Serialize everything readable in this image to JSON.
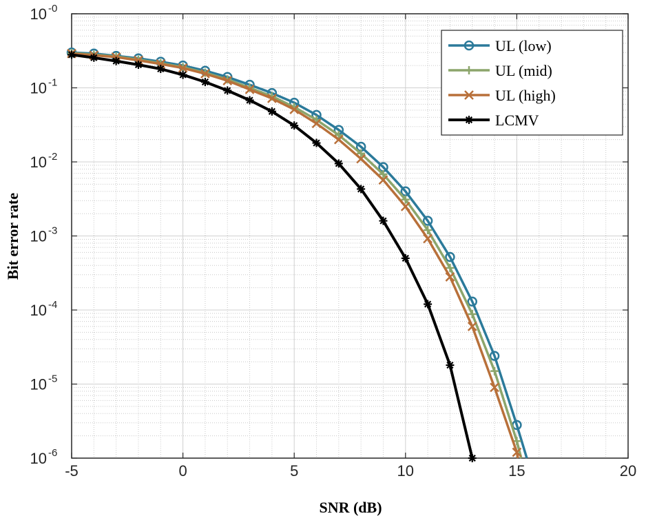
{
  "chart_data": {
    "type": "line",
    "title": "",
    "xlabel": "SNR (dB)",
    "ylabel": "Bit error rate",
    "xlim": [
      -5,
      20
    ],
    "ylim": [
      1e-06,
      1
    ],
    "yscale": "log",
    "grid": true,
    "minor_grid": true,
    "legend_position": "top-right",
    "x_ticks": [
      "-5",
      "0",
      "5",
      "10",
      "15",
      "20"
    ],
    "x_tick_values": [
      -5,
      0,
      5,
      10,
      15,
      20
    ],
    "y_ticks": [
      {
        "value": 1,
        "base": "10",
        "exp": "-0"
      },
      {
        "value": 0.1,
        "base": "10",
        "exp": "-1"
      },
      {
        "value": 0.01,
        "base": "10",
        "exp": "-2"
      },
      {
        "value": 0.001,
        "base": "10",
        "exp": "-3"
      },
      {
        "value": 0.0001,
        "base": "10",
        "exp": "-4"
      },
      {
        "value": 1e-05,
        "base": "10",
        "exp": "-5"
      },
      {
        "value": 1e-06,
        "base": "10",
        "exp": "-6"
      }
    ],
    "series": [
      {
        "name": "UL (low)",
        "color": "#2b7a9a",
        "marker": "circle",
        "points": [
          [
            -5,
            0.3
          ],
          [
            -4,
            0.29
          ],
          [
            -3,
            0.27
          ],
          [
            -2,
            0.25
          ],
          [
            -1,
            0.225
          ],
          [
            0,
            0.2
          ],
          [
            1,
            0.17
          ],
          [
            2,
            0.14
          ],
          [
            3,
            0.11
          ],
          [
            4,
            0.085
          ],
          [
            5,
            0.063
          ],
          [
            6,
            0.043
          ],
          [
            7,
            0.027
          ],
          [
            8,
            0.016
          ],
          [
            9,
            0.0085
          ],
          [
            10,
            0.004
          ],
          [
            11,
            0.0016
          ],
          [
            12,
            0.00052
          ],
          [
            13,
            0.00013
          ],
          [
            14,
            2.4e-05
          ],
          [
            15,
            2.8e-06
          ],
          [
            15.45,
            1e-06
          ]
        ]
      },
      {
        "name": "UL (mid)",
        "color": "#8ca56b",
        "marker": "plus",
        "points": [
          [
            -5,
            0.295
          ],
          [
            -4,
            0.28
          ],
          [
            -3,
            0.265
          ],
          [
            -2,
            0.24
          ],
          [
            -1,
            0.215
          ],
          [
            0,
            0.19
          ],
          [
            1,
            0.16
          ],
          [
            2,
            0.13
          ],
          [
            3,
            0.1
          ],
          [
            4,
            0.077
          ],
          [
            5,
            0.055
          ],
          [
            6,
            0.037
          ],
          [
            7,
            0.023
          ],
          [
            8,
            0.013
          ],
          [
            9,
            0.0068
          ],
          [
            10,
            0.0031
          ],
          [
            11,
            0.0012
          ],
          [
            12,
            0.00037
          ],
          [
            13,
            8.8e-05
          ],
          [
            14,
            1.5e-05
          ],
          [
            15,
            1.7e-06
          ],
          [
            15.2,
            1e-06
          ]
        ]
      },
      {
        "name": "UL (high)",
        "color": "#b8703a",
        "marker": "x",
        "points": [
          [
            -5,
            0.29
          ],
          [
            -4,
            0.275
          ],
          [
            -3,
            0.26
          ],
          [
            -2,
            0.235
          ],
          [
            -1,
            0.21
          ],
          [
            0,
            0.185
          ],
          [
            1,
            0.155
          ],
          [
            2,
            0.125
          ],
          [
            3,
            0.095
          ],
          [
            4,
            0.072
          ],
          [
            5,
            0.051
          ],
          [
            6,
            0.033
          ],
          [
            7,
            0.02
          ],
          [
            8,
            0.011
          ],
          [
            9,
            0.0057
          ],
          [
            10,
            0.0025
          ],
          [
            11,
            0.00092
          ],
          [
            12,
            0.00028
          ],
          [
            13,
            6e-05
          ],
          [
            14,
            9e-06
          ],
          [
            15,
            1.2e-06
          ],
          [
            15.05,
            1e-06
          ]
        ]
      },
      {
        "name": "LCMV",
        "color": "#000000",
        "marker": "star",
        "points": [
          [
            -5,
            0.28
          ],
          [
            -4,
            0.255
          ],
          [
            -3,
            0.23
          ],
          [
            -2,
            0.205
          ],
          [
            -1,
            0.18
          ],
          [
            0,
            0.15
          ],
          [
            1,
            0.12
          ],
          [
            2,
            0.092
          ],
          [
            3,
            0.068
          ],
          [
            4,
            0.048
          ],
          [
            5,
            0.031
          ],
          [
            6,
            0.018
          ],
          [
            7,
            0.0095
          ],
          [
            8,
            0.0043
          ],
          [
            9,
            0.0016
          ],
          [
            10,
            0.0005
          ],
          [
            11,
            0.00012
          ],
          [
            12,
            1.8e-05
          ],
          [
            13,
            1e-06
          ]
        ]
      }
    ]
  }
}
